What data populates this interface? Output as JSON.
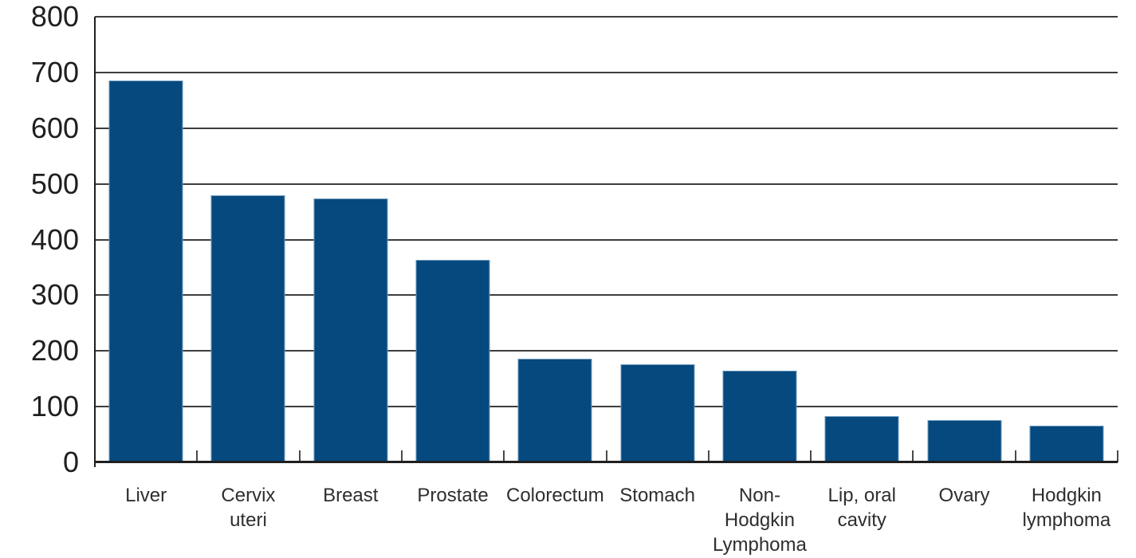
{
  "chart_data": {
    "type": "bar",
    "title": "",
    "xlabel": "",
    "ylabel": "",
    "categories": [
      "Liver",
      "Cervix uteri",
      "Breast",
      "Prostate",
      "Colorectum",
      "Stomach",
      "Non-Hodgkin Lymphoma",
      "Lip, oral cavity",
      "Ovary",
      "Hodgkin lymphoma"
    ],
    "category_label_lines": [
      [
        "Liver"
      ],
      [
        "Cervix",
        "uteri"
      ],
      [
        "Breast"
      ],
      [
        "Prostate"
      ],
      [
        "Colorectum"
      ],
      [
        "Stomach"
      ],
      [
        "Non-",
        "Hodgkin",
        "Lymphoma"
      ],
      [
        "Lip, oral",
        "cavity"
      ],
      [
        "Ovary"
      ],
      [
        "Hodgkin",
        "lymphoma"
      ]
    ],
    "values": [
      685,
      480,
      474,
      364,
      186,
      176,
      164,
      83,
      76,
      66
    ],
    "ylim": [
      0,
      800
    ],
    "ytick_step": 100,
    "ytick_labels": [
      "0",
      "100",
      "200",
      "300",
      "400",
      "500",
      "600",
      "700",
      "800"
    ],
    "grid": "horizontal-every-100",
    "legend": "none",
    "colors": {
      "bar": "#05497F",
      "gridline": "#3d3d3d",
      "axis": "#1f1f1f",
      "tick": "#4a4a4a",
      "label": "#2e2e2e"
    }
  }
}
